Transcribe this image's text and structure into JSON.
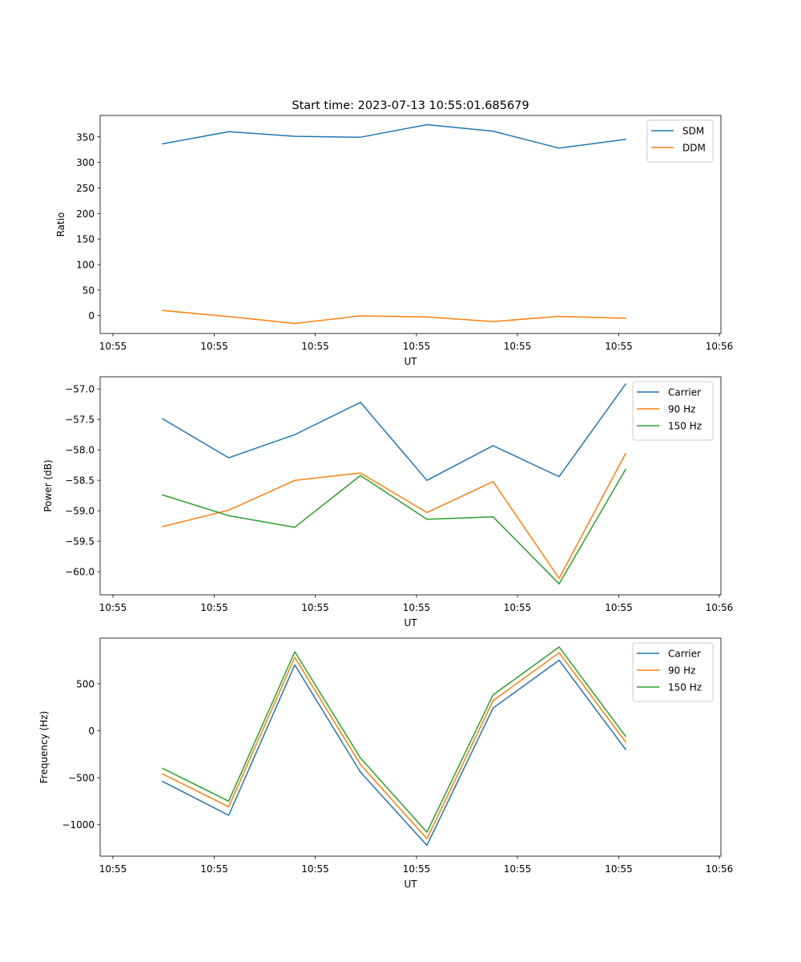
{
  "title": "Start time: 2023-07-13 10:55:01.685679",
  "chart_data": [
    {
      "type": "line",
      "xlabel": "UT",
      "ylabel": "Ratio",
      "x_tick_labels": [
        "10:55",
        "10:55",
        "10:55",
        "10:55",
        "10:55",
        "10:55",
        "10:55"
      ],
      "x_end_label": "10:56",
      "ylim": [
        -35,
        392
      ],
      "yticks": [
        0,
        50,
        100,
        150,
        200,
        250,
        300,
        350
      ],
      "ytick_labels": [
        "0",
        "50",
        "100",
        "150",
        "200",
        "250",
        "300",
        "350"
      ],
      "legend_position": "upper right",
      "series": [
        {
          "name": "SDM",
          "color": "#1f77b4",
          "values": [
            336.5,
            360.2,
            351.2,
            349.3,
            374.0,
            361.3,
            328.0,
            345.0
          ]
        },
        {
          "name": "DDM",
          "color": "#ff7f0e",
          "values": [
            10.0,
            -1.8,
            -15.4,
            -0.5,
            -2.6,
            -11.6,
            -1.4,
            -5.1
          ]
        }
      ]
    },
    {
      "type": "line",
      "xlabel": "UT",
      "ylabel": "Power (dB)",
      "x_tick_labels": [
        "10:55",
        "10:55",
        "10:55",
        "10:55",
        "10:55",
        "10:55",
        "10:55"
      ],
      "x_end_label": "10:56",
      "ylim": [
        -60.38,
        -56.8
      ],
      "yticks": [
        -60.0,
        -59.5,
        -59.0,
        -58.5,
        -58.0,
        -57.5,
        -57.0
      ],
      "ytick_labels": [
        "−60.0",
        "−59.5",
        "−59.0",
        "−58.5",
        "−58.0",
        "−57.5",
        "−57.0"
      ],
      "legend_position": "upper right",
      "series": [
        {
          "name": "Carrier",
          "color": "#1f77b4",
          "values": [
            -57.49,
            -58.13,
            -57.75,
            -57.22,
            -58.5,
            -57.93,
            -58.44,
            -56.92
          ]
        },
        {
          "name": "90 Hz",
          "color": "#ff7f0e",
          "values": [
            -59.26,
            -58.99,
            -58.5,
            -58.38,
            -59.03,
            -58.52,
            -60.11,
            -58.06
          ]
        },
        {
          "name": "150 Hz",
          "color": "#2ca02c",
          "values": [
            -58.74,
            -59.08,
            -59.27,
            -58.42,
            -59.14,
            -59.1,
            -60.2,
            -58.32
          ]
        }
      ]
    },
    {
      "type": "line",
      "xlabel": "UT",
      "ylabel": "Frequency (Hz)",
      "x_tick_labels": [
        "10:55",
        "10:55",
        "10:55",
        "10:55",
        "10:55",
        "10:55",
        "10:55"
      ],
      "x_end_label": "10:56",
      "ylim": [
        -1335,
        985
      ],
      "yticks": [
        -1000,
        -500,
        0,
        500
      ],
      "ytick_labels": [
        "−1000",
        "−500",
        "0",
        "500"
      ],
      "legend_position": "upper right",
      "series": [
        {
          "name": "Carrier",
          "color": "#1f77b4",
          "values": [
            -540,
            -900,
            700,
            -440,
            -1220,
            240,
            750,
            -200
          ]
        },
        {
          "name": "90 Hz",
          "color": "#ff7f0e",
          "values": [
            -460,
            -810,
            780,
            -360,
            -1150,
            320,
            830,
            -120
          ]
        },
        {
          "name": "150 Hz",
          "color": "#2ca02c",
          "values": [
            -400,
            -750,
            840,
            -290,
            -1080,
            380,
            890,
            -60
          ]
        }
      ]
    }
  ]
}
